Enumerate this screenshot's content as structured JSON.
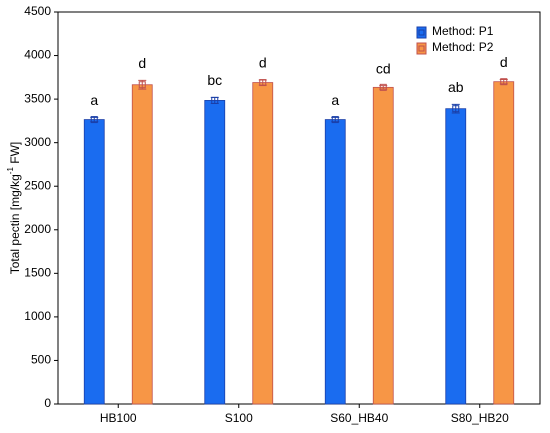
{
  "chart_data": {
    "type": "bar",
    "y_label": {
      "text": "Total pectin [mg/kg",
      "sup": "-1",
      "after": " FW]"
    },
    "categories": [
      "HB100",
      "S100",
      "S60_HB40",
      "S80_HB20"
    ],
    "series": [
      {
        "name": "Method: P1",
        "color": "#1a6cf0",
        "edge": "#1a3fa8",
        "values": [
          3265,
          3485,
          3265,
          3390
        ],
        "errors": [
          25,
          35,
          25,
          50
        ],
        "letters": [
          "a",
          "bc",
          "a",
          "ab"
        ]
      },
      {
        "name": "Method: P2",
        "color": "#f79646",
        "edge": "#c0504d",
        "values": [
          3665,
          3690,
          3635,
          3700
        ],
        "errors": [
          50,
          30,
          20,
          25
        ],
        "letters": [
          "d",
          "d",
          "cd",
          "d"
        ]
      }
    ],
    "ylim": [
      0,
      4500
    ],
    "yticks": [
      0,
      500,
      1000,
      1500,
      2000,
      2500,
      3000,
      3500,
      4000,
      4500
    ],
    "grid": false
  }
}
